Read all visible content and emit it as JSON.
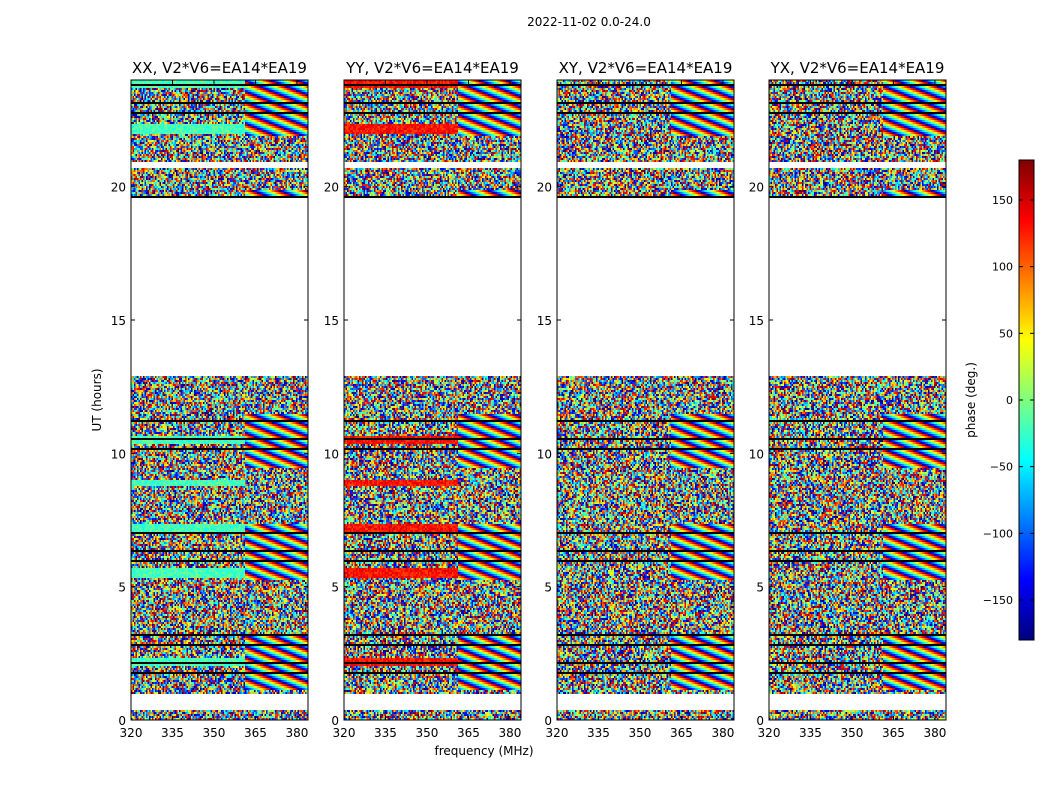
{
  "chart_data": {
    "type": "heatmap",
    "title": "2022-11-02 0.0-24.0",
    "xlabel": "frequency (MHz)",
    "ylabel": "UT (hours)",
    "colorbar": {
      "label": "phase (deg.)",
      "range": [
        -180,
        180
      ],
      "ticks": [
        150,
        100,
        50,
        0,
        -50,
        -100,
        -150
      ],
      "tick_labels": [
        "150",
        "100",
        "50",
        "0",
        "−50",
        "−100",
        "−150"
      ],
      "colormap": [
        "#00007f",
        "#0000ff",
        "#007fff",
        "#00ffff",
        "#7fff7f",
        "#ffff00",
        "#ff7f00",
        "#ff0000",
        "#7f0000"
      ]
    },
    "xlim": [
      320,
      384
    ],
    "ylim": [
      0,
      24
    ],
    "xticks": [
      320,
      335,
      350,
      365,
      380
    ],
    "xtick_labels": [
      "320",
      "335",
      "350",
      "365",
      "380"
    ],
    "yticks": [
      0,
      5,
      10,
      15,
      20
    ],
    "ytick_labels": [
      "0",
      "5",
      "10",
      "15",
      "20"
    ],
    "panels": [
      {
        "title": "XX, V2*V6=EA14*EA19",
        "coherent_phase": -20
      },
      {
        "title": "YY, V2*V6=EA14*EA19",
        "coherent_phase": 130
      },
      {
        "title": "XY, V2*V6=EA14*EA19",
        "coherent_phase": null
      },
      {
        "title": "YX, V2*V6=EA14*EA19",
        "coherent_phase": null
      }
    ],
    "blank_time_ranges": [
      [
        12.9,
        19.6
      ],
      [
        20.7,
        20.9
      ],
      [
        0.35,
        0.95
      ]
    ],
    "note": "Phase vs. frequency and UT; mostly noise-like phases with horizontal scan segments"
  }
}
